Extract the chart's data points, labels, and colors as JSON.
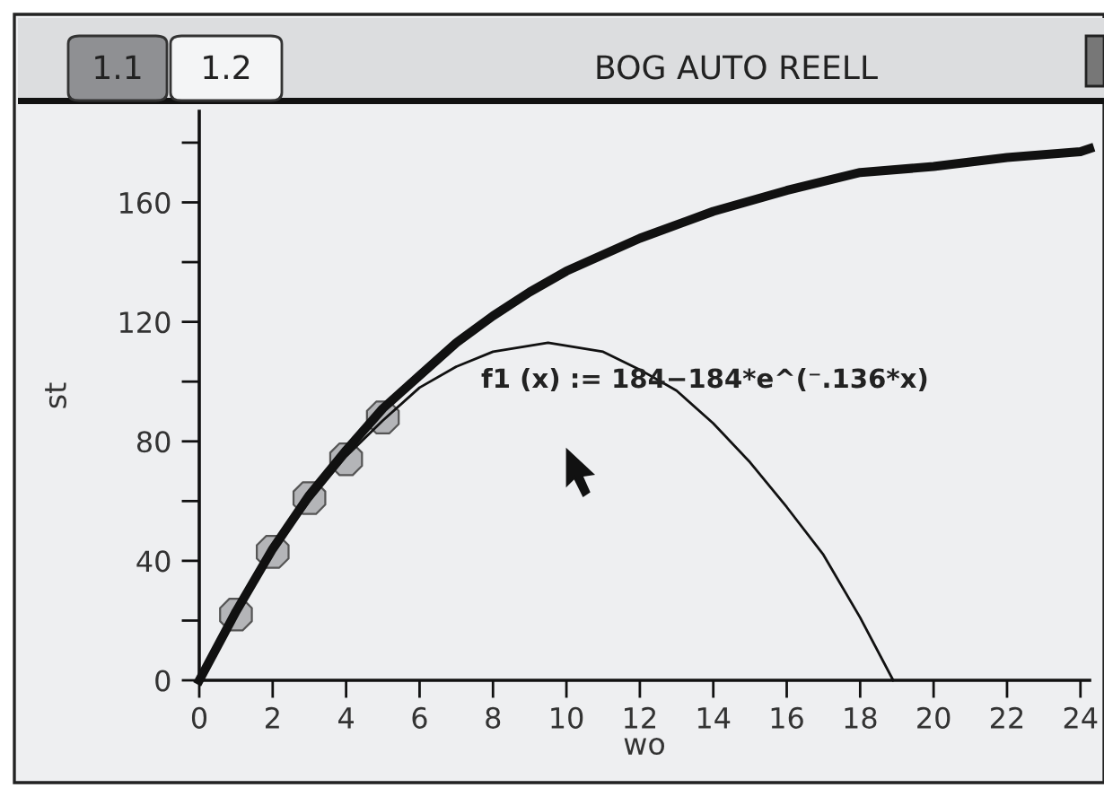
{
  "chart_data": {
    "type": "line",
    "xlabel": "wo",
    "ylabel": "st",
    "xlim": [
      0,
      24.25
    ],
    "ylim": [
      0,
      190.5
    ],
    "xticks": [
      0,
      2,
      4,
      6,
      8,
      10,
      12,
      14,
      16,
      18,
      20,
      22,
      24
    ],
    "yticks": [
      0,
      {
        "value": 20,
        "label": null
      },
      40,
      {
        "value": 60,
        "label": null
      },
      80,
      {
        "value": 100,
        "label": null
      },
      120,
      {
        "value": 140,
        "label": null
      },
      160,
      {
        "value": 180,
        "label": null
      }
    ],
    "series": [
      {
        "type": "scatter",
        "color": "#b4b5b8",
        "marker": "circle",
        "x": [
          1,
          2,
          3,
          4,
          5
        ],
        "values": [
          22,
          43,
          61,
          74,
          88
        ]
      },
      {
        "color": "#111111",
        "line_style": "solid",
        "x": [
          0,
          1,
          2,
          3,
          4,
          5,
          6,
          7,
          8,
          9,
          10,
          12,
          14,
          16,
          18,
          20,
          22,
          24,
          24.25
        ],
        "values": [
          0,
          23,
          44,
          62,
          77,
          91,
          102,
          113,
          122,
          130,
          137,
          148,
          157,
          164,
          170,
          172,
          175,
          177,
          178
        ]
      },
      {
        "color": "#111111",
        "line_style": "solid",
        "x": [
          0,
          1,
          2,
          3,
          4,
          5,
          6,
          7,
          8,
          9.5,
          11,
          12,
          13,
          14,
          15,
          16,
          17,
          18,
          18.9
        ],
        "values": [
          0,
          22,
          43,
          60,
          75,
          87,
          98,
          105,
          110,
          113,
          110,
          104,
          97,
          86,
          73,
          58,
          42,
          21,
          0
        ]
      }
    ],
    "annotations": [
      "f1 (x) := 184−184*e^(⁻.136*x)",
      "1.1",
      "1.2",
      "BOG AUTO REELL"
    ]
  }
}
